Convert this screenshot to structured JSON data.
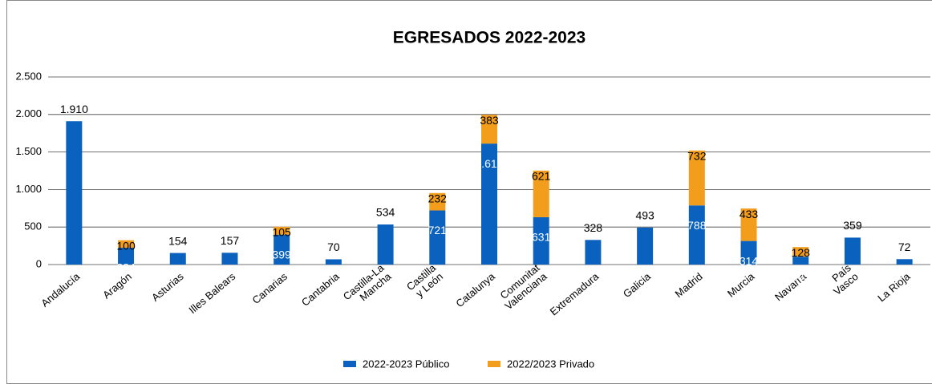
{
  "chart_data": {
    "type": "stacked-bar",
    "title": "EGRESADOS 2022-2023",
    "categories": [
      "Andalucía",
      "Aragón",
      "Asturias",
      "Illes Balears",
      "Canarias",
      "Cantabria",
      "Castilla-La\nMancha",
      "Castilla\ny León",
      "Catalunya",
      "Comunitat\nValenciana",
      "Extremadura",
      "Galicia",
      "Madrid",
      "Murcia",
      "Navarra",
      "País\nVasco",
      "La Rioja"
    ],
    "series": [
      {
        "name": "2022-2023 Público",
        "color": "#0a62be",
        "values": [
          1910,
          224,
          154,
          157,
          399,
          70,
          534,
          721,
          1612,
          631,
          328,
          493,
          788,
          314,
          105,
          359,
          72
        ],
        "value_labels": [
          "1.910",
          "224",
          "154",
          "157",
          "399",
          "70",
          "534",
          "721",
          "1.612",
          "631",
          "328",
          "493",
          "788",
          "314",
          "105",
          "359",
          "72"
        ]
      },
      {
        "name": "2022/2023 Privado",
        "color": "#f29d1c",
        "values": [
          null,
          100,
          null,
          null,
          105,
          null,
          null,
          232,
          383,
          621,
          null,
          null,
          732,
          433,
          128,
          null,
          null
        ]
      }
    ],
    "ylim": [
      0,
      2500
    ],
    "yticks": [
      0,
      500,
      {
        "value": 1000,
        "label": "1.000"
      },
      {
        "value": 1500,
        "label": "1.500"
      },
      {
        "value": 2000,
        "label": "2.000"
      },
      {
        "value": 2500,
        "label": "2.500"
      }
    ],
    "grid": true
  }
}
